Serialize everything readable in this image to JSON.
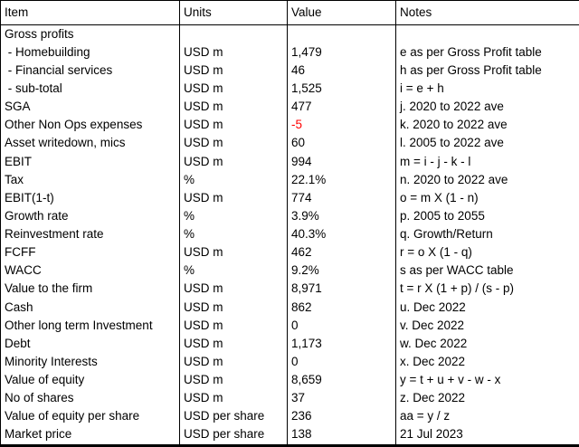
{
  "colors": {
    "text": "#000000",
    "border": "#000000",
    "negative_value": "#ff0000",
    "background": "#ffffff"
  },
  "table": {
    "columns": [
      {
        "label": "Item"
      },
      {
        "label": "Units"
      },
      {
        "label": "Value"
      },
      {
        "label": "Notes"
      }
    ],
    "rows": [
      {
        "item": "Gross profits",
        "units": "",
        "value": "",
        "notes": ""
      },
      {
        "item": " - Homebuilding",
        "units": "USD m",
        "value": "1,479",
        "notes": "e as per Gross Profit table"
      },
      {
        "item": " - Financial services",
        "units": "USD m",
        "value": "46",
        "notes": "h as per Gross Profit table"
      },
      {
        "item": " - sub-total",
        "units": "USD m",
        "value": "1,525",
        "notes": "i = e + h"
      },
      {
        "item": "SGA",
        "units": "USD m",
        "value": "477",
        "notes": "j. 2020 to 2022 ave"
      },
      {
        "item": "Other Non Ops expenses",
        "units": "USD m",
        "value": "-5",
        "notes": "k. 2020 to 2022 ave",
        "value_color": "#ff0000"
      },
      {
        "item": "Asset writedown, mics",
        "units": "USD m",
        "value": "60",
        "notes": "l. 2005 to 2022 ave"
      },
      {
        "item": "EBIT",
        "units": "USD m",
        "value": "994",
        "notes": "m = i - j - k - l"
      },
      {
        "item": "Tax",
        "units": "%",
        "value": "22.1%",
        "notes": "n. 2020 to 2022 ave"
      },
      {
        "item": "EBIT(1-t)",
        "units": "USD m",
        "value": "774",
        "notes": "o = m X (1 - n)"
      },
      {
        "item": "Growth rate",
        "units": "%",
        "value": "3.9%",
        "notes": "p. 2005 to 2055"
      },
      {
        "item": "Reinvestment rate",
        "units": "%",
        "value": "40.3%",
        "notes": "q. Growth/Return"
      },
      {
        "item": "FCFF",
        "units": "USD m",
        "value": "462",
        "notes": "r = o X (1 - q)"
      },
      {
        "item": "WACC",
        "units": "%",
        "value": "9.2%",
        "notes": "s as per WACC table"
      },
      {
        "item": "Value to the firm",
        "units": "USD m",
        "value": "8,971",
        "notes": "t = r X (1 + p) / (s - p)"
      },
      {
        "item": "Cash",
        "units": "USD m",
        "value": "862",
        "notes": "u. Dec 2022"
      },
      {
        "item": "Other long term Investment",
        "units": "USD m",
        "value": "0",
        "notes": "v. Dec 2022"
      },
      {
        "item": "Debt",
        "units": "USD m",
        "value": "1,173",
        "notes": "w. Dec 2022"
      },
      {
        "item": "Minority Interests",
        "units": "USD m",
        "value": "0",
        "notes": "x. Dec 2022"
      },
      {
        "item": "Value of equity",
        "units": "USD m",
        "value": "8,659",
        "notes": "y = t + u + v - w - x"
      },
      {
        "item": "No of shares",
        "units": "USD m",
        "value": "37",
        "notes": "z. Dec 2022"
      },
      {
        "item": "Value of equity per share",
        "units": "USD per share",
        "value": "236",
        "notes": "aa = y / z"
      },
      {
        "item": "Market price",
        "units": "USD per share",
        "value": "138",
        "notes": "21 Jul 2023"
      }
    ]
  }
}
